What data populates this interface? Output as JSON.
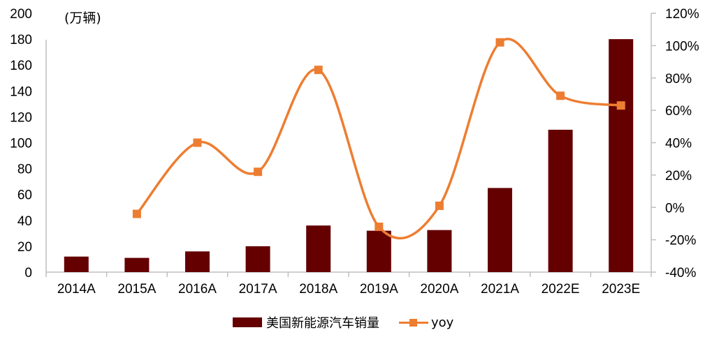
{
  "chart_data": {
    "type": "bar+line",
    "title": "",
    "unit_label": "(万辆)",
    "categories": [
      "2014A",
      "2015A",
      "2016A",
      "2017A",
      "2018A",
      "2019A",
      "2020A",
      "2021A",
      "2022E",
      "2023E"
    ],
    "series": [
      {
        "name": "美国新能源汽车销量",
        "type": "bar",
        "axis": "left",
        "color": "#640000",
        "values": [
          12,
          11,
          16,
          20,
          36,
          32,
          32.5,
          65,
          110,
          180
        ]
      },
      {
        "name": "yoy",
        "type": "line",
        "axis": "right",
        "color": "#ED7D31",
        "smooth": true,
        "marker": "square",
        "values": [
          null,
          -4,
          40,
          22,
          85,
          -12,
          1,
          102,
          69,
          63
        ]
      }
    ],
    "left_axis": {
      "min": 0,
      "max": 200,
      "step": 20,
      "ticks": [
        "0",
        "20",
        "40",
        "60",
        "80",
        "100",
        "120",
        "140",
        "160",
        "180",
        "200"
      ]
    },
    "right_axis": {
      "min": -40,
      "max": 120,
      "step": 20,
      "ticks": [
        "-40%",
        "-20%",
        "0%",
        "20%",
        "40%",
        "60%",
        "80%",
        "100%",
        "120%"
      ]
    },
    "xlabel": "",
    "ylabel": "(万辆)",
    "grid": false,
    "legend_position": "bottom"
  },
  "legend": {
    "bar_label": "美国新能源汽车销量",
    "line_label": "yoy"
  }
}
